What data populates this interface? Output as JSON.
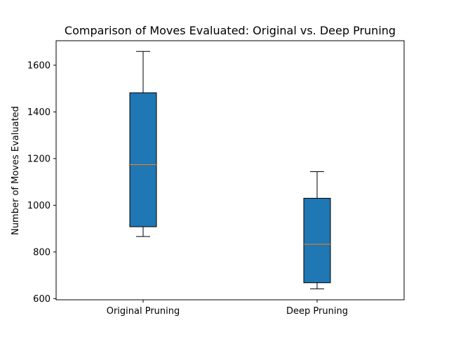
{
  "chart_data": {
    "type": "box",
    "title": "Comparison of Moves Evaluated: Original vs. Deep Pruning",
    "xlabel": "",
    "ylabel": "Number of Moves Evaluated",
    "categories": [
      "Original Pruning",
      "Deep Pruning"
    ],
    "ylim": [
      595,
      1705
    ],
    "yticks": [
      600,
      800,
      1000,
      1200,
      1400,
      1600
    ],
    "grid": false,
    "boxes": [
      {
        "name": "Original Pruning",
        "whisker_low": 866,
        "q1": 908,
        "median": 1174,
        "q3": 1482,
        "whisker_high": 1659
      },
      {
        "name": "Deep Pruning",
        "whisker_low": 642,
        "q1": 668,
        "median": 833,
        "q3": 1030,
        "whisker_high": 1144
      }
    ],
    "colors": {
      "box_fill": "#1f77b4",
      "median": "#ff7f0e",
      "lines": "#000000"
    }
  }
}
